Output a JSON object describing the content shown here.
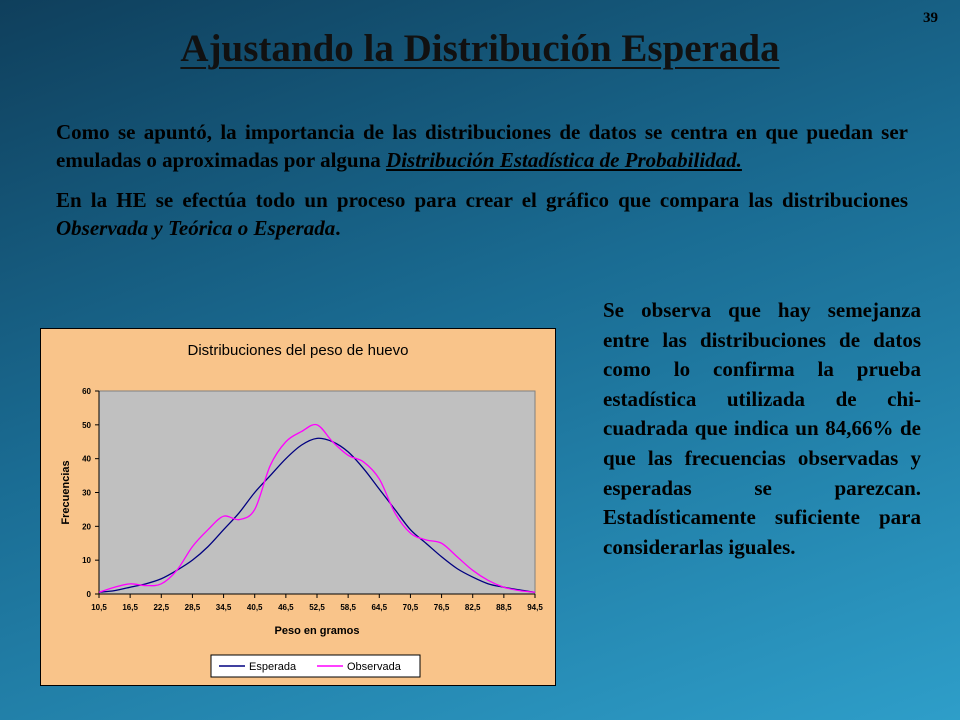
{
  "slide": {
    "page_number": "39",
    "title": "Ajustando la Distribución Esperada",
    "p1_a": "Como se apuntó, la importancia de las distribuciones de datos se centra en que puedan ser emuladas o aproximadas por alguna ",
    "p1_link": "Distribución Estadística de Probabilidad.",
    "p2_a": "En la HE se efectúa todo un proceso para crear el gráfico que compara las distribuciones ",
    "p2_em": "Observada y Teórica o Esperada",
    "p2_end": ".",
    "side_text": "Se observa que hay semejanza entre las distribuciones de datos como lo confirma la prueba estadística utilizada de chi-cuadrada que indica un 84,66% de que las frecuencias observadas y esperadas se parezcan. Estadísticamente suficiente para considerarlas iguales."
  },
  "colors": {
    "chart_bg": "#f9c48a",
    "plot_bg": "#c0c0c0",
    "esperada": "#000080",
    "observada": "#ff00ff"
  },
  "chart_data": {
    "type": "line",
    "title": "Distribuciones del peso de huevo",
    "xlabel": "Peso en gramos",
    "ylabel": "Frecuencias",
    "x_ticks": [
      "10,5",
      "16,5",
      "22,5",
      "28,5",
      "34,5",
      "40,5",
      "46,5",
      "52,5",
      "58,5",
      "64,5",
      "70,5",
      "76,5",
      "82,5",
      "88,5",
      "94,5"
    ],
    "y_ticks": [
      "0",
      "10",
      "20",
      "30",
      "40",
      "50",
      "60"
    ],
    "xlim": [
      10.5,
      94.5
    ],
    "ylim": [
      0,
      60
    ],
    "grid": false,
    "legend": "bottom",
    "series": [
      {
        "name": "Esperada",
        "x": [
          10.5,
          13.5,
          16.5,
          19.5,
          22.5,
          25.5,
          28.5,
          31.5,
          34.5,
          37.5,
          40.5,
          43.5,
          46.5,
          49.5,
          52.5,
          55.5,
          58.5,
          61.5,
          64.5,
          67.5,
          70.5,
          73.5,
          76.5,
          79.5,
          82.5,
          85.5,
          88.5,
          91.5,
          94.5
        ],
        "y": [
          0.5,
          1,
          2,
          3,
          4.5,
          7,
          10,
          14,
          19,
          24,
          30,
          35,
          40,
          44,
          46,
          45,
          42,
          37,
          31,
          25,
          19,
          15,
          11,
          7.5,
          5,
          3,
          2,
          1.2,
          0.5
        ]
      },
      {
        "name": "Observada",
        "x": [
          10.5,
          13.5,
          16.5,
          19.5,
          22.5,
          25.5,
          28.5,
          31.5,
          34.5,
          37.5,
          40.5,
          43.5,
          46.5,
          49.5,
          52.5,
          55.5,
          58.5,
          61.5,
          64.5,
          67.5,
          70.5,
          73.5,
          76.5,
          79.5,
          82.5,
          85.5,
          88.5,
          91.5,
          94.5
        ],
        "y": [
          0.5,
          2,
          3,
          2.5,
          3,
          7,
          14,
          19,
          23,
          22,
          25,
          38,
          45,
          48,
          50,
          45,
          41,
          39,
          34,
          24,
          18,
          16,
          15,
          11,
          7,
          4,
          2,
          1,
          0.5
        ]
      }
    ]
  }
}
